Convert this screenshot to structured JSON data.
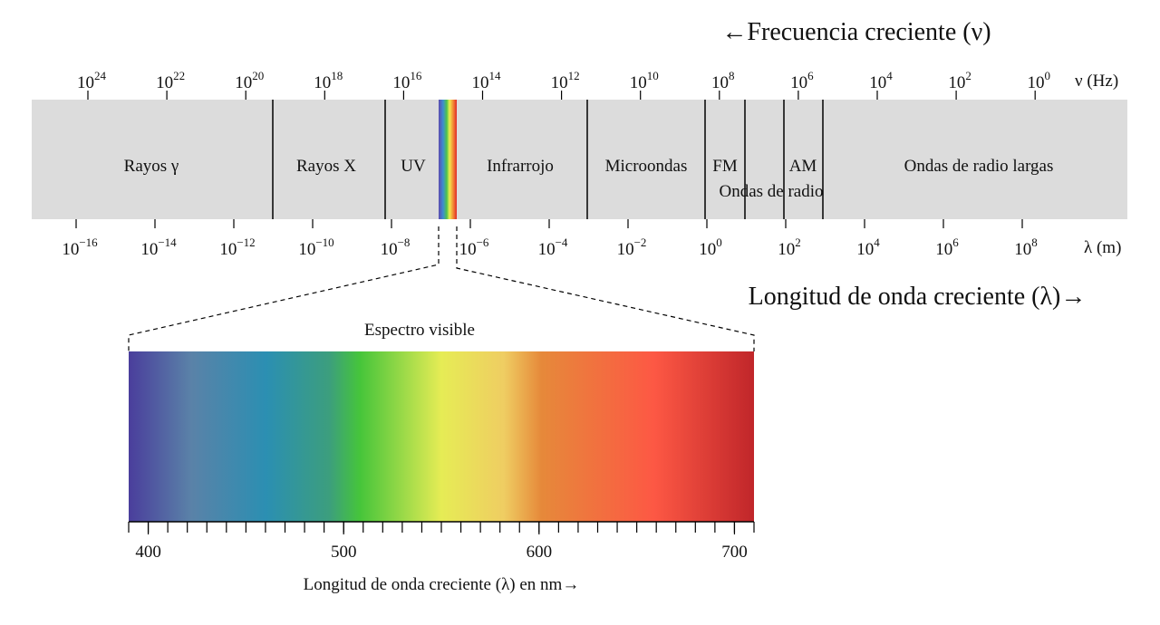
{
  "header": {
    "title": "←Frecuencia creciente (ν)"
  },
  "frequency_axis": {
    "unit": "ν (Hz)",
    "ticks": [
      {
        "base": "10",
        "exponent": "24"
      },
      {
        "base": "10",
        "exponent": "22"
      },
      {
        "base": "10",
        "exponent": "20"
      },
      {
        "base": "10",
        "exponent": "18"
      },
      {
        "base": "10",
        "exponent": "16"
      },
      {
        "base": "10",
        "exponent": "14"
      },
      {
        "base": "10",
        "exponent": "12"
      },
      {
        "base": "10",
        "exponent": "10"
      },
      {
        "base": "10",
        "exponent": "8"
      },
      {
        "base": "10",
        "exponent": "6"
      },
      {
        "base": "10",
        "exponent": "4"
      },
      {
        "base": "10",
        "exponent": "2"
      },
      {
        "base": "10",
        "exponent": "0"
      }
    ]
  },
  "regions": [
    {
      "label": "Rayos γ"
    },
    {
      "label": "Rayos X"
    },
    {
      "label": "UV"
    },
    {
      "label": "Infrarrojo"
    },
    {
      "label": "Microondas"
    },
    {
      "label": "FM"
    },
    {
      "label": "Ondas de radio"
    },
    {
      "label": "AM"
    },
    {
      "label": "Ondas de radio largas"
    }
  ],
  "wavelength_axis": {
    "unit": "λ (m)",
    "caption": "Longitud de onda creciente (λ)→",
    "ticks": [
      {
        "base": "10",
        "exponent": "−16"
      },
      {
        "base": "10",
        "exponent": "−14"
      },
      {
        "base": "10",
        "exponent": "−12"
      },
      {
        "base": "10",
        "exponent": "−10"
      },
      {
        "base": "10",
        "exponent": "−8"
      },
      {
        "base": "10",
        "exponent": "−6"
      },
      {
        "base": "10",
        "exponent": "−4"
      },
      {
        "base": "10",
        "exponent": "−2"
      },
      {
        "base": "10",
        "exponent": "0"
      },
      {
        "base": "10",
        "exponent": "2"
      },
      {
        "base": "10",
        "exponent": "4"
      },
      {
        "base": "10",
        "exponent": "6"
      },
      {
        "base": "10",
        "exponent": "8"
      }
    ]
  },
  "visible_spectrum": {
    "title": "Espectro visible",
    "caption": "Longitud de onda creciente (λ) en nm→",
    "xlim": [
      390,
      710
    ],
    "xticks": [
      400,
      500,
      600,
      700
    ]
  }
}
